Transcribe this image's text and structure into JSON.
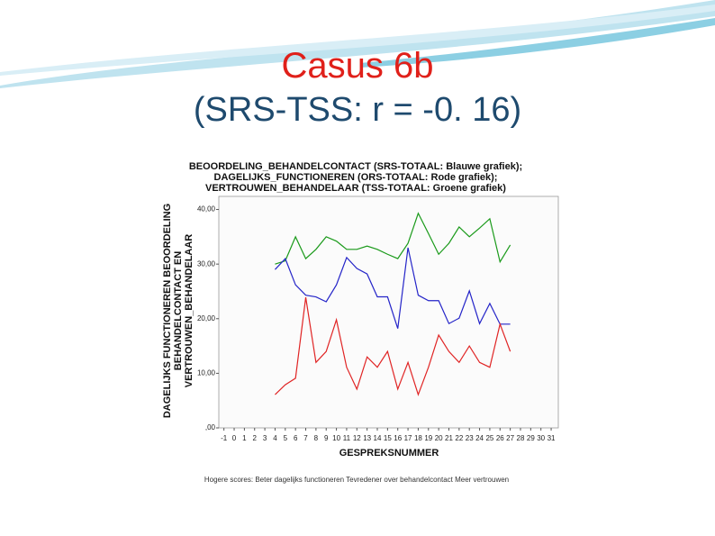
{
  "slide": {
    "title": "Casus 6b",
    "subtitle": "(SRS-TSS: r = -0. 16)"
  },
  "chart_data": {
    "type": "line",
    "title": [
      "BEOORDELING_BEHANDELCONTACT (SRS-TOTAAL: Blauwe grafiek);",
      "DAGELIJKS_FUNCTIONEREN (ORS-TOTAAL: Rode grafiek);",
      "VERTROUWEN_BEHANDELAAR (TSS-TOTAAL: Groene grafiek)"
    ],
    "y_label": [
      "DAGELIJKS FUNCTIONEREN BEOORDELING",
      "BEHANDELCONTACT EN",
      "VERTROUWEN_BEHANDELAAR"
    ],
    "x_label": "GESPREKSNUMMER",
    "note": "Hogere scores: Beter dagelijks functioneren  Tevredener over behandelcontact  Meer vertrouwen",
    "x": [
      4,
      5,
      6,
      7,
      8,
      9,
      10,
      11,
      12,
      13,
      14,
      15,
      16,
      17,
      18,
      19,
      20,
      21,
      22,
      23,
      24,
      25,
      26,
      27
    ],
    "series": [
      {
        "color": "#1a9a1a",
        "values": [
          30,
          30.6,
          35,
          31,
          32.7,
          35,
          34.2,
          32.7,
          32.7,
          33.3,
          32.7,
          31.8,
          31,
          33.8,
          39.3,
          35.6,
          31.8,
          33.8,
          36.8,
          35,
          36.6,
          38.3,
          30.4,
          33.5
        ]
      },
      {
        "color": "#2424c8",
        "values": [
          29,
          31,
          26.2,
          24.3,
          24,
          23.1,
          26.2,
          31.2,
          29.2,
          28.2,
          24,
          24,
          18.2,
          33,
          24.3,
          23.3,
          23.3,
          19.1,
          20.1,
          25.1,
          19.1,
          22.8,
          19,
          19
        ]
      },
      {
        "color": "#e02424",
        "values": [
          6.1,
          7.9,
          9.1,
          23.9,
          12,
          14,
          19.8,
          11.1,
          7.1,
          13,
          11.1,
          14,
          7.1,
          12,
          6.1,
          11.1,
          17,
          14,
          12,
          15,
          12,
          11.1,
          19,
          14
        ]
      }
    ],
    "xlim": [
      -1.5,
      31.7
    ],
    "xticks": [
      -1,
      0,
      1,
      2,
      3,
      4,
      5,
      6,
      7,
      8,
      9,
      10,
      11,
      12,
      13,
      14,
      15,
      16,
      17,
      18,
      19,
      20,
      21,
      22,
      23,
      24,
      25,
      26,
      27,
      28,
      29,
      30,
      31
    ],
    "ylim": [
      0,
      42.4
    ],
    "yticks": [
      {
        "value": 0,
        "label": ",00"
      },
      {
        "value": 10,
        "label": "10,00"
      },
      {
        "value": 20,
        "label": "20,00"
      },
      {
        "value": 30,
        "label": "30,00"
      },
      {
        "value": 40,
        "label": "40,00"
      }
    ]
  }
}
